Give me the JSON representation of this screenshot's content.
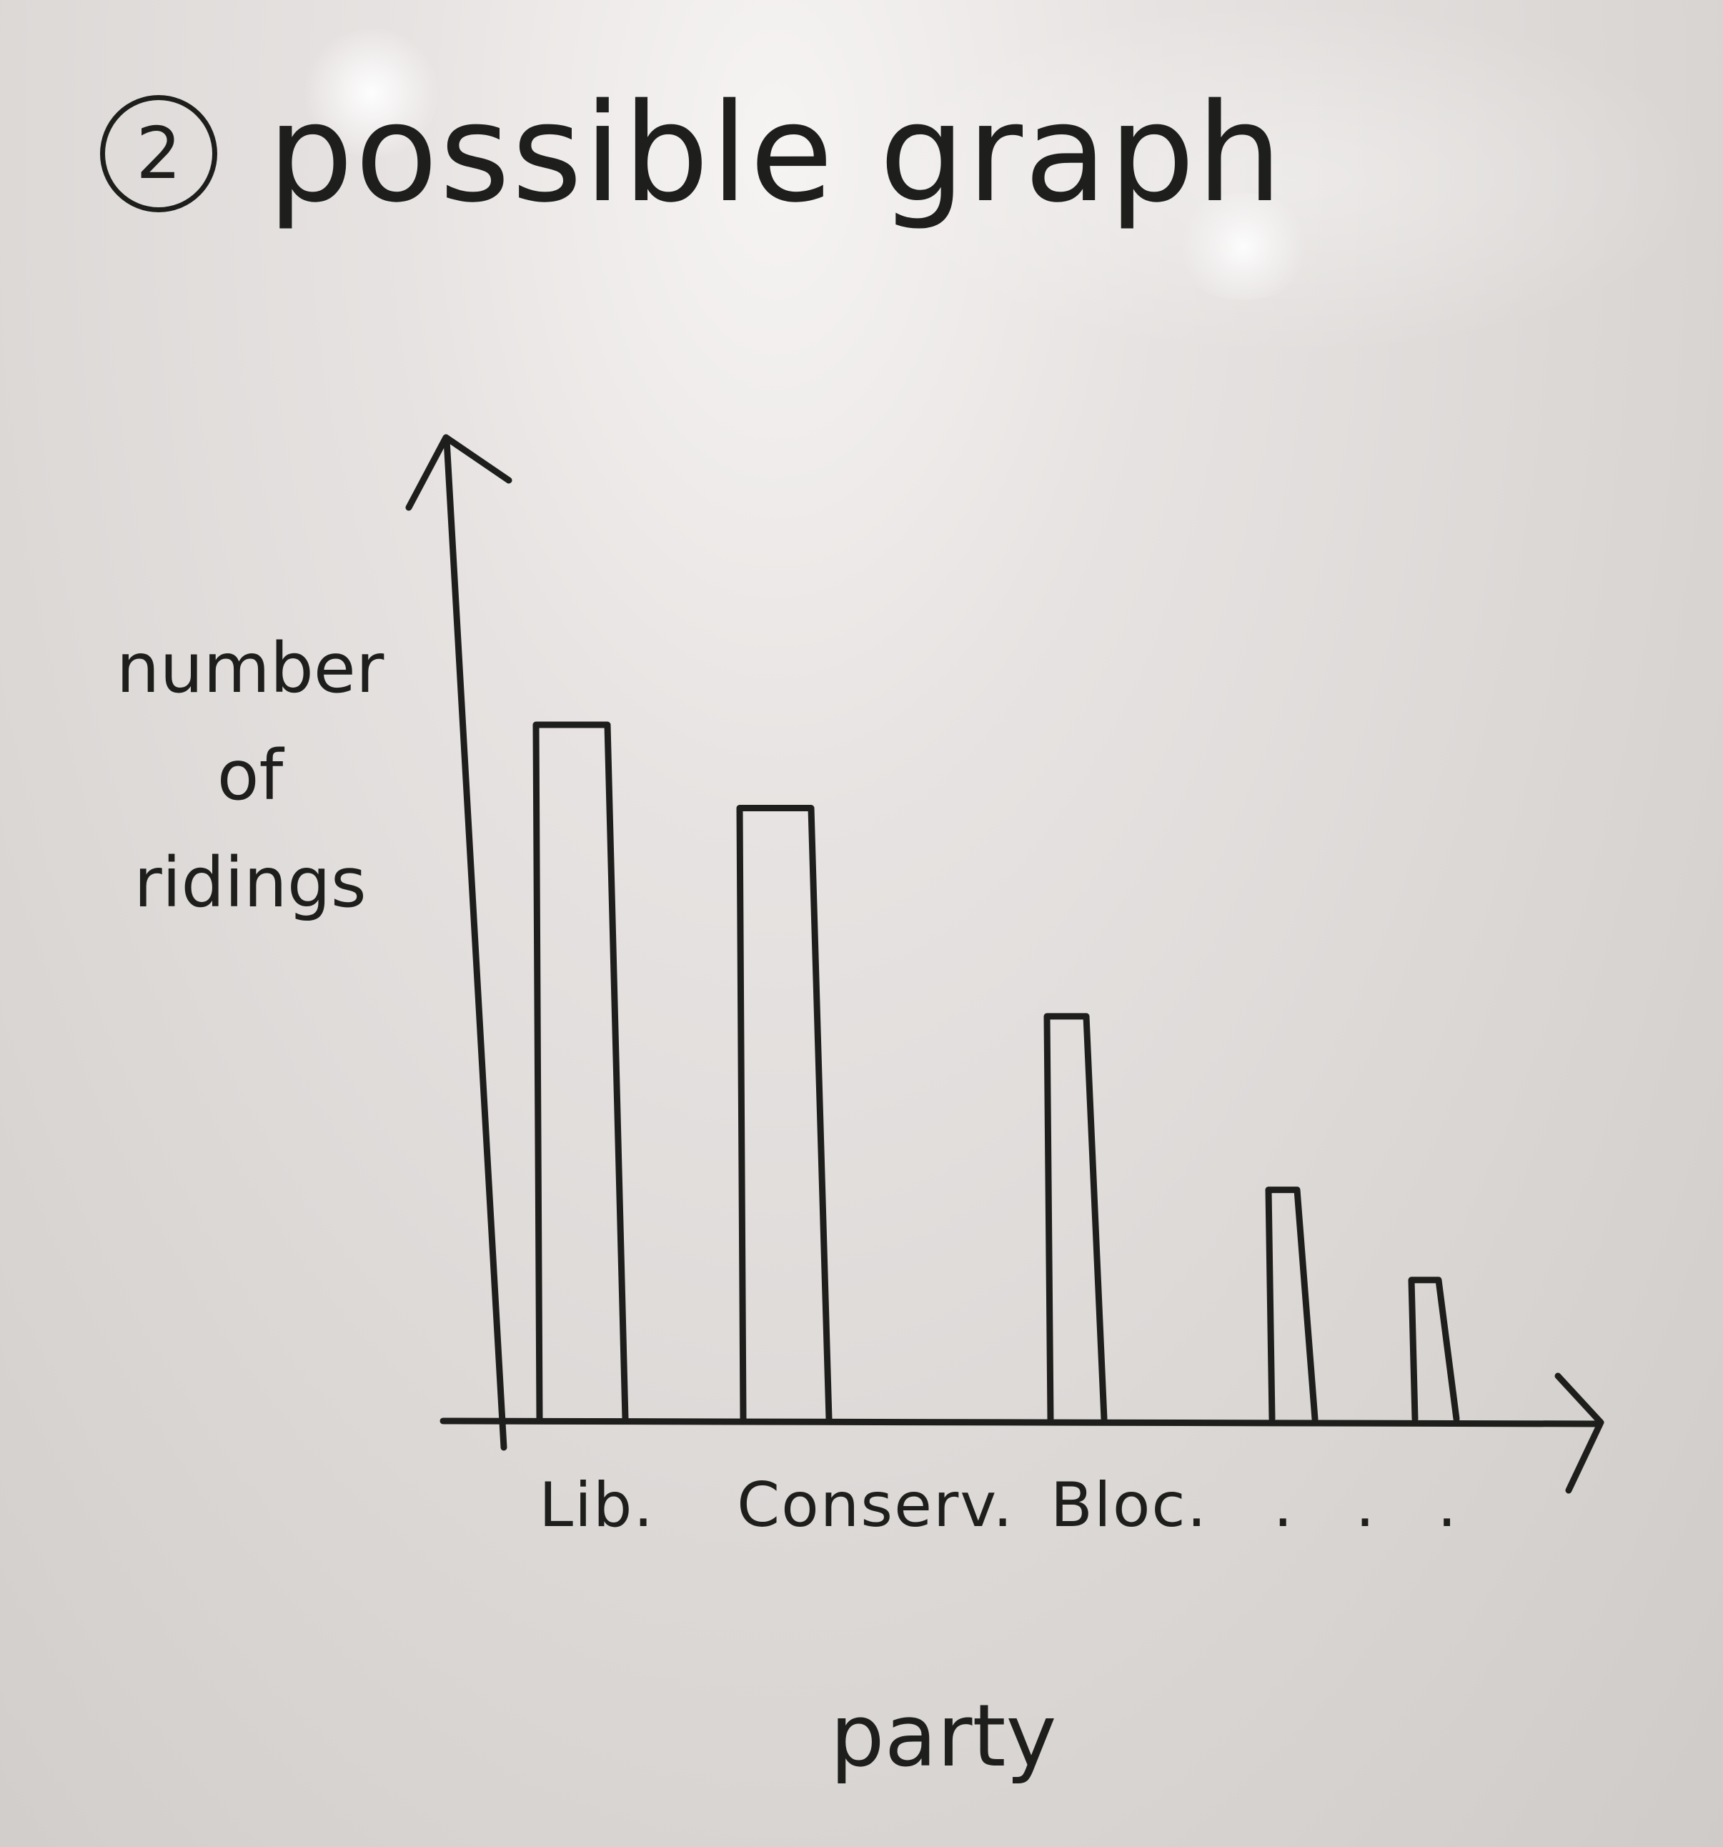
{
  "header": {
    "number": "2",
    "title": "possible graph"
  },
  "chart_data": {
    "type": "bar",
    "categories": [
      "Lib.",
      "Conserv.",
      "Bloc.",
      "",
      ""
    ],
    "tick_labels": [
      "Lib.",
      "Conserv.",
      "Bloc.",
      ". . ."
    ],
    "values": [
      100,
      88,
      58,
      33,
      20
    ],
    "title": "possible graph",
    "xlabel": "party",
    "ylabel_lines": [
      "number",
      "of",
      "ridings"
    ],
    "ylim": [
      0,
      130
    ],
    "grid": false,
    "legend": "none",
    "colors": {
      "ink": "#1e1f1c",
      "bar_fill": "none"
    }
  }
}
